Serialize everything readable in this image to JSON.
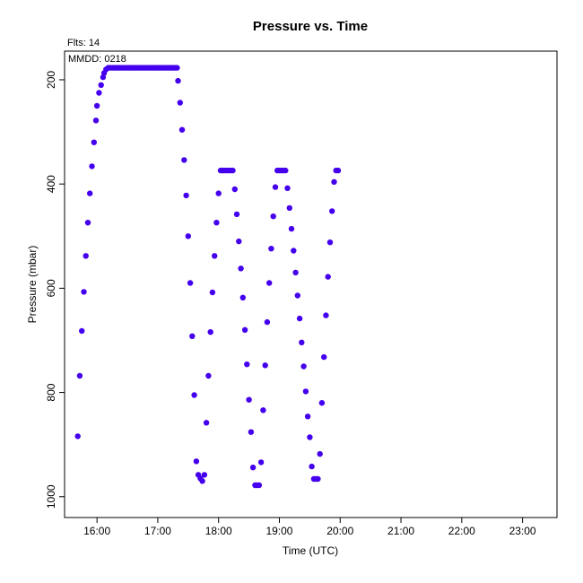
{
  "chart_data": {
    "type": "scatter",
    "title": "Pressure  vs. Time",
    "xlabel": "Time (UTC)",
    "ylabel": "Pressure (mbar)",
    "annotations": {
      "flts": "Flts: 14",
      "mmdd": "MMDD: 0218"
    },
    "xlim": [
      "15:28",
      "23:34"
    ],
    "ylim": [
      1040,
      145
    ],
    "y_reversed": true,
    "grid": false,
    "legend": "none",
    "point_color": "#4400ee",
    "x_ticks": [
      "16:00",
      "17:00",
      "18:00",
      "19:00",
      "20:00",
      "21:00",
      "22:00",
      "23:00"
    ],
    "y_ticks": [
      200,
      400,
      600,
      800,
      1000
    ],
    "points": [
      [
        "15:41",
        884
      ],
      [
        "15:43",
        768
      ],
      [
        "15:45",
        682
      ],
      [
        "15:47",
        607
      ],
      [
        "15:49",
        538
      ],
      [
        "15:51",
        474
      ],
      [
        "15:53",
        418
      ],
      [
        "15:55",
        366
      ],
      [
        "15:57",
        320
      ],
      [
        "15:59",
        278
      ],
      [
        "16:00",
        250
      ],
      [
        "16:02",
        225
      ],
      [
        "16:04",
        210
      ],
      [
        "16:06",
        195
      ],
      [
        "16:07",
        187
      ],
      [
        "16:09",
        180
      ],
      [
        "16:11",
        177
      ],
      [
        "16:13",
        177
      ],
      [
        "16:15",
        177
      ],
      [
        "16:17",
        177
      ],
      [
        "16:19",
        177
      ],
      [
        "16:21",
        177
      ],
      [
        "16:23",
        177
      ],
      [
        "16:25",
        177
      ],
      [
        "16:27",
        177
      ],
      [
        "16:29",
        177
      ],
      [
        "16:31",
        177
      ],
      [
        "16:33",
        177
      ],
      [
        "16:35",
        177
      ],
      [
        "16:37",
        177
      ],
      [
        "16:39",
        177
      ],
      [
        "16:41",
        177
      ],
      [
        "16:43",
        177
      ],
      [
        "16:45",
        177
      ],
      [
        "16:47",
        177
      ],
      [
        "16:49",
        177
      ],
      [
        "16:51",
        177
      ],
      [
        "16:53",
        177
      ],
      [
        "16:55",
        177
      ],
      [
        "16:57",
        177
      ],
      [
        "16:59",
        177
      ],
      [
        "17:01",
        177
      ],
      [
        "17:03",
        177
      ],
      [
        "17:05",
        177
      ],
      [
        "17:07",
        177
      ],
      [
        "17:09",
        177
      ],
      [
        "17:11",
        177
      ],
      [
        "17:13",
        177
      ],
      [
        "17:15",
        177
      ],
      [
        "17:17",
        177
      ],
      [
        "17:19",
        177
      ],
      [
        "17:20",
        202
      ],
      [
        "17:22",
        244
      ],
      [
        "17:24",
        296
      ],
      [
        "17:26",
        354
      ],
      [
        "17:28",
        422
      ],
      [
        "17:30",
        500
      ],
      [
        "17:32",
        590
      ],
      [
        "17:34",
        692
      ],
      [
        "17:36",
        805
      ],
      [
        "17:38",
        932
      ],
      [
        "17:40",
        958
      ],
      [
        "17:42",
        965
      ],
      [
        "17:44",
        970
      ],
      [
        "17:46",
        958
      ],
      [
        "17:48",
        858
      ],
      [
        "17:50",
        768
      ],
      [
        "17:52",
        684
      ],
      [
        "17:54",
        608
      ],
      [
        "17:56",
        538
      ],
      [
        "17:58",
        474
      ],
      [
        "18:00",
        418
      ],
      [
        "18:02",
        374
      ],
      [
        "18:04",
        374
      ],
      [
        "18:06",
        374
      ],
      [
        "18:08",
        374
      ],
      [
        "18:10",
        374
      ],
      [
        "18:12",
        374
      ],
      [
        "18:14",
        374
      ],
      [
        "18:16",
        410
      ],
      [
        "18:18",
        458
      ],
      [
        "18:20",
        510
      ],
      [
        "18:22",
        562
      ],
      [
        "18:24",
        618
      ],
      [
        "18:26",
        680
      ],
      [
        "18:28",
        746
      ],
      [
        "18:30",
        814
      ],
      [
        "18:32",
        876
      ],
      [
        "18:34",
        944
      ],
      [
        "18:36",
        978
      ],
      [
        "18:38",
        978
      ],
      [
        "18:40",
        978
      ],
      [
        "18:42",
        934
      ],
      [
        "18:44",
        834
      ],
      [
        "18:46",
        748
      ],
      [
        "18:48",
        665
      ],
      [
        "18:50",
        590
      ],
      [
        "18:52",
        524
      ],
      [
        "18:54",
        462
      ],
      [
        "18:56",
        406
      ],
      [
        "18:58",
        374
      ],
      [
        "19:00",
        374
      ],
      [
        "19:02",
        374
      ],
      [
        "19:04",
        374
      ],
      [
        "19:06",
        374
      ],
      [
        "19:08",
        408
      ],
      [
        "19:10",
        446
      ],
      [
        "19:12",
        486
      ],
      [
        "19:14",
        528
      ],
      [
        "19:16",
        570
      ],
      [
        "19:18",
        614
      ],
      [
        "19:20",
        658
      ],
      [
        "19:22",
        704
      ],
      [
        "19:24",
        750
      ],
      [
        "19:26",
        798
      ],
      [
        "19:28",
        846
      ],
      [
        "19:30",
        886
      ],
      [
        "19:32",
        942
      ],
      [
        "19:34",
        966
      ],
      [
        "19:36",
        966
      ],
      [
        "19:38",
        966
      ],
      [
        "19:40",
        918
      ],
      [
        "19:42",
        820
      ],
      [
        "19:44",
        732
      ],
      [
        "19:46",
        652
      ],
      [
        "19:48",
        578
      ],
      [
        "19:50",
        512
      ],
      [
        "19:52",
        452
      ],
      [
        "19:54",
        396
      ],
      [
        "19:56",
        374
      ],
      [
        "19:58",
        374
      ]
    ]
  }
}
